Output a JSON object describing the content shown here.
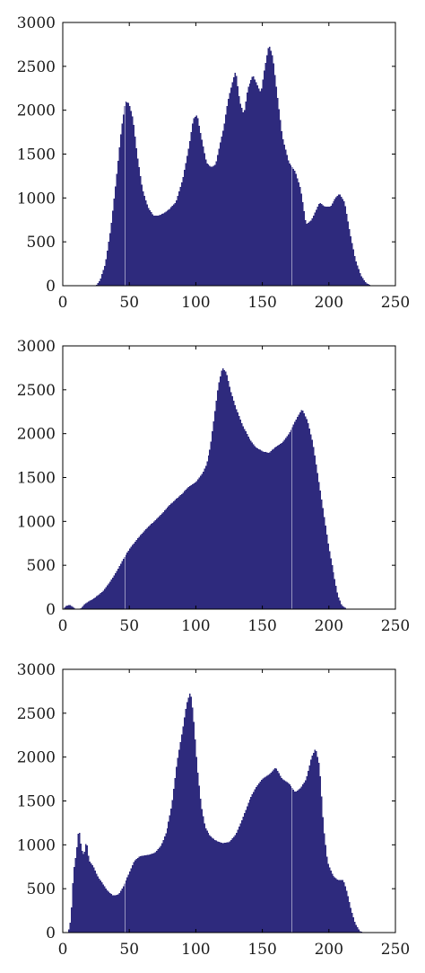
{
  "figure": {
    "bar_color": "#2e2a7d",
    "background": "#ffffff"
  },
  "chart_data": [
    {
      "type": "bar",
      "title": "",
      "xlabel": "",
      "ylabel": "",
      "xlim": [
        0,
        250
      ],
      "ylim": [
        0,
        3000
      ],
      "xticks": [
        0,
        50,
        100,
        150,
        200,
        250
      ],
      "yticks": [
        0,
        500,
        1000,
        1500,
        2000,
        2500,
        3000
      ],
      "grid": false,
      "legend": "none",
      "bin_width": 1,
      "series": [
        {
          "keypoints": [
            [
              0,
              0
            ],
            [
              25,
              0
            ],
            [
              28,
              60
            ],
            [
              32,
              250
            ],
            [
              36,
              650
            ],
            [
              40,
              1200
            ],
            [
              44,
              1800
            ],
            [
              47,
              2100
            ],
            [
              50,
              2080
            ],
            [
              53,
              1900
            ],
            [
              56,
              1500
            ],
            [
              60,
              1100
            ],
            [
              64,
              900
            ],
            [
              68,
              800
            ],
            [
              72,
              800
            ],
            [
              76,
              830
            ],
            [
              80,
              870
            ],
            [
              85,
              950
            ],
            [
              90,
              1200
            ],
            [
              95,
              1600
            ],
            [
              98,
              1900
            ],
            [
              101,
              1950
            ],
            [
              104,
              1700
            ],
            [
              108,
              1400
            ],
            [
              112,
              1350
            ],
            [
              115,
              1380
            ],
            [
              118,
              1600
            ],
            [
              121,
              1800
            ],
            [
              124,
              2100
            ],
            [
              128,
              2350
            ],
            [
              130,
              2450
            ],
            [
              133,
              2100
            ],
            [
              136,
              1950
            ],
            [
              139,
              2250
            ],
            [
              143,
              2400
            ],
            [
              146,
              2300
            ],
            [
              149,
              2200
            ],
            [
              152,
              2500
            ],
            [
              155,
              2750
            ],
            [
              158,
              2600
            ],
            [
              161,
              2200
            ],
            [
              165,
              1700
            ],
            [
              170,
              1400
            ],
            [
              175,
              1300
            ],
            [
              179,
              1100
            ],
            [
              183,
              700
            ],
            [
              187,
              750
            ],
            [
              190,
              850
            ],
            [
              193,
              950
            ],
            [
              197,
              900
            ],
            [
              201,
              900
            ],
            [
              205,
              1000
            ],
            [
              208,
              1050
            ],
            [
              212,
              950
            ],
            [
              216,
              600
            ],
            [
              220,
              300
            ],
            [
              224,
              120
            ],
            [
              228,
              30
            ],
            [
              232,
              0
            ],
            [
              250,
              0
            ]
          ]
        }
      ]
    },
    {
      "type": "bar",
      "title": "",
      "xlabel": "",
      "ylabel": "",
      "xlim": [
        0,
        250
      ],
      "ylim": [
        0,
        3000
      ],
      "xticks": [
        0,
        50,
        100,
        150,
        200,
        250
      ],
      "yticks": [
        0,
        500,
        1000,
        1500,
        2000,
        2500,
        3000
      ],
      "grid": false,
      "legend": "none",
      "bin_width": 1,
      "series": [
        {
          "keypoints": [
            [
              0,
              0
            ],
            [
              2,
              30
            ],
            [
              5,
              50
            ],
            [
              8,
              20
            ],
            [
              10,
              0
            ],
            [
              13,
              0
            ],
            [
              16,
              50
            ],
            [
              20,
              90
            ],
            [
              25,
              140
            ],
            [
              30,
              200
            ],
            [
              35,
              300
            ],
            [
              40,
              420
            ],
            [
              45,
              560
            ],
            [
              50,
              680
            ],
            [
              55,
              780
            ],
            [
              60,
              870
            ],
            [
              65,
              950
            ],
            [
              70,
              1020
            ],
            [
              75,
              1100
            ],
            [
              80,
              1180
            ],
            [
              85,
              1250
            ],
            [
              90,
              1320
            ],
            [
              95,
              1400
            ],
            [
              100,
              1450
            ],
            [
              105,
              1550
            ],
            [
              108,
              1650
            ],
            [
              111,
              1850
            ],
            [
              114,
              2200
            ],
            [
              117,
              2550
            ],
            [
              120,
              2750
            ],
            [
              123,
              2700
            ],
            [
              126,
              2500
            ],
            [
              130,
              2300
            ],
            [
              135,
              2100
            ],
            [
              140,
              1950
            ],
            [
              145,
              1850
            ],
            [
              150,
              1800
            ],
            [
              155,
              1780
            ],
            [
              160,
              1850
            ],
            [
              165,
              1900
            ],
            [
              170,
              2000
            ],
            [
              175,
              2150
            ],
            [
              180,
              2280
            ],
            [
              184,
              2150
            ],
            [
              188,
              1900
            ],
            [
              192,
              1500
            ],
            [
              196,
              1100
            ],
            [
              200,
              700
            ],
            [
              204,
              380
            ],
            [
              207,
              150
            ],
            [
              210,
              40
            ],
            [
              214,
              0
            ],
            [
              250,
              0
            ]
          ]
        }
      ]
    },
    {
      "type": "bar",
      "title": "",
      "xlabel": "",
      "ylabel": "",
      "xlim": [
        0,
        250
      ],
      "ylim": [
        0,
        3000
      ],
      "xticks": [
        0,
        50,
        100,
        150,
        200,
        250
      ],
      "yticks": [
        0,
        500,
        1000,
        1500,
        2000,
        2500,
        3000
      ],
      "grid": false,
      "legend": "none",
      "bin_width": 1,
      "series": [
        {
          "keypoints": [
            [
              0,
              0
            ],
            [
              4,
              0
            ],
            [
              6,
              150
            ],
            [
              8,
              700
            ],
            [
              10,
              900
            ],
            [
              12,
              1200
            ],
            [
              14,
              950
            ],
            [
              16,
              880
            ],
            [
              18,
              1050
            ],
            [
              20,
              820
            ],
            [
              23,
              760
            ],
            [
              26,
              650
            ],
            [
              30,
              560
            ],
            [
              34,
              470
            ],
            [
              38,
              420
            ],
            [
              42,
              440
            ],
            [
              46,
              540
            ],
            [
              50,
              680
            ],
            [
              54,
              820
            ],
            [
              58,
              870
            ],
            [
              62,
              880
            ],
            [
              66,
              890
            ],
            [
              70,
              920
            ],
            [
              74,
              1000
            ],
            [
              78,
              1150
            ],
            [
              82,
              1450
            ],
            [
              86,
              1950
            ],
            [
              90,
              2300
            ],
            [
              93,
              2600
            ],
            [
              96,
              2750
            ],
            [
              98,
              2500
            ],
            [
              101,
              1900
            ],
            [
              104,
              1450
            ],
            [
              107,
              1200
            ],
            [
              111,
              1100
            ],
            [
              115,
              1050
            ],
            [
              120,
              1020
            ],
            [
              125,
              1030
            ],
            [
              130,
              1120
            ],
            [
              135,
              1300
            ],
            [
              140,
              1500
            ],
            [
              145,
              1650
            ],
            [
              150,
              1750
            ],
            [
              155,
              1800
            ],
            [
              160,
              1880
            ],
            [
              165,
              1750
            ],
            [
              170,
              1700
            ],
            [
              175,
              1600
            ],
            [
              179,
              1650
            ],
            [
              183,
              1750
            ],
            [
              187,
              2000
            ],
            [
              190,
              2100
            ],
            [
              193,
              1900
            ],
            [
              196,
              1200
            ],
            [
              199,
              800
            ],
            [
              203,
              650
            ],
            [
              207,
              600
            ],
            [
              211,
              600
            ],
            [
              214,
              450
            ],
            [
              217,
              250
            ],
            [
              220,
              100
            ],
            [
              223,
              20
            ],
            [
              226,
              0
            ],
            [
              250,
              0
            ]
          ]
        }
      ]
    }
  ]
}
